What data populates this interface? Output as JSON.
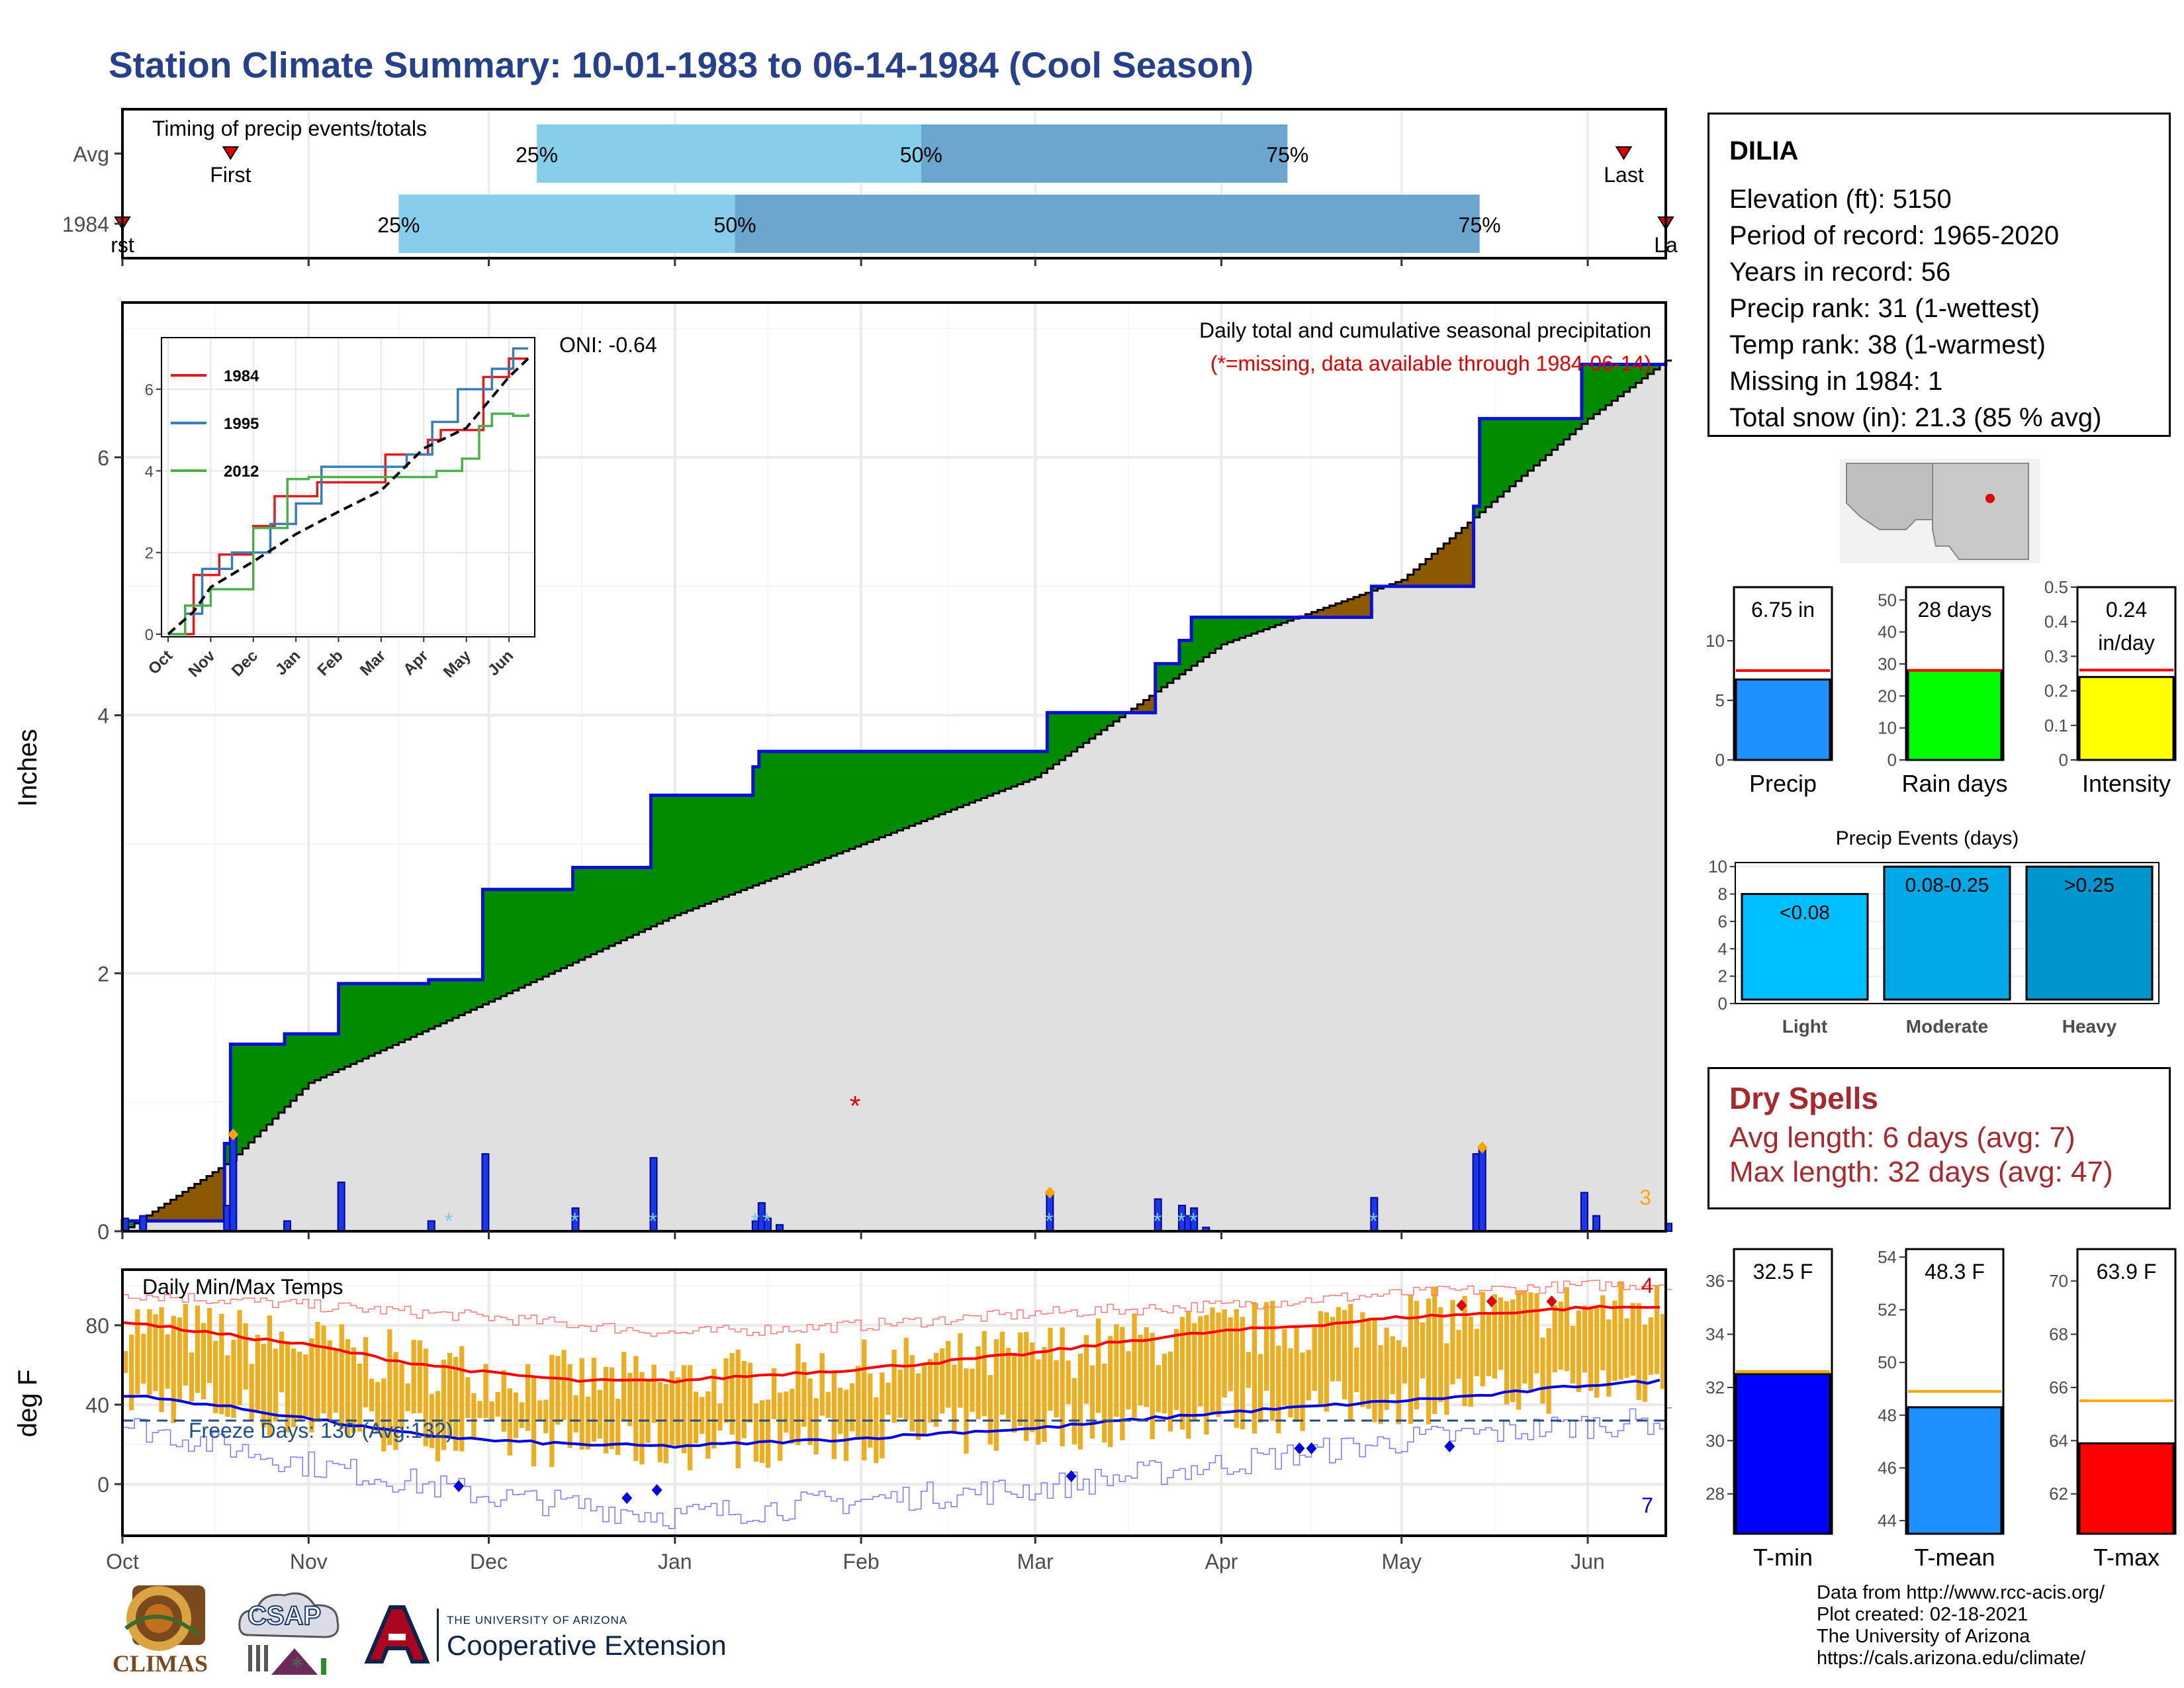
{
  "page": {
    "title": "Station Climate Summary: 10-01-1983 to 06-14-1984 (Cool Season)"
  },
  "station": {
    "name": "DILIA",
    "lines": [
      "Elevation (ft): 5150",
      "Period of record: 1965-2020",
      "Years in record: 56",
      "Precip rank: 31 (1-wettest)",
      "Temp rank: 38 (1-warmest)",
      "Missing in 1984: 1",
      "Total snow (in): 21.3 (85 % avg)"
    ]
  },
  "dry_spells": {
    "title": "Dry Spells",
    "avg_line": "Avg length: 6 days (avg: 7)",
    "max_line": "Max length: 32 days (avg: 47)"
  },
  "credits": [
    "Data from http://www.rcc-acis.org/",
    "Plot created: 02-18-2021",
    "The University of Arizona",
    "https://cals.arizona.edu/climate/"
  ],
  "logos": {
    "climas": "CLIMAS",
    "csap": "CSAP",
    "ua_small": "THE UNIVERSITY OF ARIZONA",
    "ua_big": "Cooperative Extension"
  },
  "colors": {
    "navy": "#26408b",
    "green_surplus": "#008b00",
    "brown_deficit": "#8b5a00",
    "cum_avg_fill": "#e0e0e0",
    "bar_blue": "#1a39e6",
    "temp_bar": "#ecad20",
    "max_line": "#ff0000",
    "min_line": "#0000e0",
    "light_blue": "#87ceeb",
    "mid_blue": "#6ba6cf"
  },
  "chart_data": [
    {
      "id": "timing",
      "type": "bar",
      "title": "Timing of precip events/totals",
      "categories": [
        "Avg",
        "1984"
      ],
      "x_domain": [
        "1983-10-01",
        "1984-06-14"
      ],
      "rows": [
        {
          "label": "Avg",
          "first": "1983-10-19",
          "p25": "1983-12-09",
          "p50": "1984-02-11",
          "p75": "1984-04-12",
          "last": "1984-06-07",
          "labels": {
            "first": "First",
            "p25": "25%",
            "p50": "50%",
            "p75": "75%",
            "last": "Last"
          }
        },
        {
          "label": "1984",
          "first": "1983-10-01",
          "p25": "1983-11-16",
          "p50": "1984-01-11",
          "p75": "1984-05-14",
          "last": "1984-06-14",
          "labels": {
            "first": "rst",
            "p25": "25%",
            "p50": "50%",
            "p75": "75%",
            "last": "La"
          }
        }
      ]
    },
    {
      "id": "precip",
      "type": "area",
      "title": "Daily total and cumulative seasonal precipitation",
      "subtitle": "(*=missing, data available through 1984-06-14)",
      "annotation": "ONI: -0.64",
      "ylabel": "Inches",
      "ylim": [
        0,
        7.2
      ],
      "yticks": [
        0,
        2,
        4,
        6
      ],
      "x_ticks": [
        "Oct",
        "Nov",
        "Dec",
        "Jan",
        "Feb",
        "Mar",
        "Apr",
        "May",
        "Jun"
      ],
      "x_domain": [
        "1983-10-01",
        "1984-06-14"
      ],
      "cumulative_1984": [
        [
          "1983-10-01",
          0.08
        ],
        [
          "1983-10-04",
          0.08
        ],
        [
          "1983-10-18",
          0.68
        ],
        [
          "1983-10-19",
          1.45
        ],
        [
          "1983-10-28",
          1.53
        ],
        [
          "1983-11-06",
          1.92
        ],
        [
          "1983-11-21",
          1.95
        ],
        [
          "1983-11-30",
          2.65
        ],
        [
          "1983-12-15",
          2.82
        ],
        [
          "1983-12-28",
          3.38
        ],
        [
          "1984-01-14",
          3.6
        ],
        [
          "1984-01-15",
          3.72
        ],
        [
          "1984-03-03",
          4.02
        ],
        [
          "1984-03-21",
          4.4
        ],
        [
          "1984-03-25",
          4.58
        ],
        [
          "1984-03-27",
          4.76
        ],
        [
          "1984-04-25",
          4.76
        ],
        [
          "1984-04-26",
          5.0
        ],
        [
          "1984-05-13",
          5.62
        ],
        [
          "1984-05-14",
          6.3
        ],
        [
          "1984-05-31",
          6.72
        ],
        [
          "1984-06-14",
          6.75
        ]
      ],
      "cumulative_avg": [
        [
          "1983-10-01",
          0.0
        ],
        [
          "1983-10-19",
          0.55
        ],
        [
          "1983-11-01",
          1.15
        ],
        [
          "1983-12-01",
          1.78
        ],
        [
          "1984-01-01",
          2.45
        ],
        [
          "1984-02-01",
          3.0
        ],
        [
          "1984-03-01",
          3.52
        ],
        [
          "1984-04-01",
          4.55
        ],
        [
          "1984-05-01",
          5.05
        ],
        [
          "1984-06-01",
          6.3
        ],
        [
          "1984-06-14",
          6.75
        ]
      ],
      "daily_1984": [
        [
          "1983-10-01",
          0.1
        ],
        [
          "1983-10-04",
          0.12
        ],
        [
          "1983-10-18",
          0.2
        ],
        [
          "1983-10-19",
          0.75
        ],
        [
          "1983-10-28",
          0.08
        ],
        [
          "1983-11-06",
          0.38
        ],
        [
          "1983-11-21",
          0.08
        ],
        [
          "1983-11-30",
          0.6
        ],
        [
          "1983-12-15",
          0.18
        ],
        [
          "1983-12-28",
          0.57
        ],
        [
          "1984-01-14",
          0.08
        ],
        [
          "1984-01-15",
          0.22
        ],
        [
          "1984-01-16",
          0.1
        ],
        [
          "1984-01-18",
          0.05
        ],
        [
          "1984-03-03",
          0.3
        ],
        [
          "1984-03-21",
          0.25
        ],
        [
          "1984-03-25",
          0.2
        ],
        [
          "1984-03-26",
          0.12
        ],
        [
          "1984-03-27",
          0.18
        ],
        [
          "1984-03-29",
          0.03
        ],
        [
          "1984-04-26",
          0.26
        ],
        [
          "1984-05-13",
          0.6
        ],
        [
          "1984-05-14",
          0.65
        ],
        [
          "1984-05-31",
          0.3
        ],
        [
          "1984-06-02",
          0.12
        ],
        [
          "1984-06-14",
          0.06
        ]
      ],
      "missing": [
        [
          "1984-01-31",
          1.0
        ]
      ],
      "annotations": {
        "corner_count": "3"
      },
      "inset": {
        "type": "line",
        "ylim": [
          0,
          7.2
        ],
        "yticks": [
          0,
          2,
          4,
          6
        ],
        "x_ticks": [
          "Oct",
          "Nov",
          "Dec",
          "Jan",
          "Feb",
          "Mar",
          "Apr",
          "May",
          "Jun"
        ],
        "series": [
          {
            "name": "1984",
            "color": "#e41a1c",
            "points": [
              [
                0,
                0.0
              ],
              [
                0.6,
                1.45
              ],
              [
                1.2,
                1.95
              ],
              [
                2.0,
                2.65
              ],
              [
                2.5,
                3.38
              ],
              [
                3.5,
                3.72
              ],
              [
                5.1,
                4.4
              ],
              [
                6.1,
                4.76
              ],
              [
                6.4,
                5.0
              ],
              [
                7.4,
                6.3
              ],
              [
                8.0,
                6.75
              ],
              [
                8.45,
                6.75
              ]
            ]
          },
          {
            "name": "1995",
            "color": "#377eb8",
            "points": [
              [
                0,
                0.0
              ],
              [
                0.4,
                0.5
              ],
              [
                0.8,
                1.6
              ],
              [
                1.5,
                2.0
              ],
              [
                2.4,
                2.7
              ],
              [
                3.0,
                3.2
              ],
              [
                3.6,
                4.1
              ],
              [
                5.6,
                4.4
              ],
              [
                6.2,
                5.2
              ],
              [
                6.8,
                6.0
              ],
              [
                7.6,
                6.5
              ],
              [
                8.1,
                7.0
              ],
              [
                8.45,
                7.0
              ]
            ]
          },
          {
            "name": "2012",
            "color": "#4daf4a",
            "points": [
              [
                0,
                0.0
              ],
              [
                0.4,
                0.7
              ],
              [
                1.0,
                1.1
              ],
              [
                2.0,
                2.6
              ],
              [
                2.8,
                3.8
              ],
              [
                3.3,
                3.85
              ],
              [
                6.3,
                4.0
              ],
              [
                6.9,
                4.3
              ],
              [
                7.3,
                5.1
              ],
              [
                7.6,
                5.4
              ],
              [
                8.1,
                5.35
              ],
              [
                8.45,
                5.4
              ]
            ]
          },
          {
            "name": "Avg",
            "color": "#000000",
            "points": [
              [
                0,
                0.0
              ],
              [
                0.6,
                0.55
              ],
              [
                1.0,
                1.15
              ],
              [
                2.0,
                1.78
              ],
              [
                3.0,
                2.45
              ],
              [
                4.0,
                3.0
              ],
              [
                5.0,
                3.52
              ],
              [
                6.0,
                4.55
              ],
              [
                7.0,
                5.05
              ],
              [
                8.0,
                6.3
              ],
              [
                8.45,
                6.75
              ]
            ]
          }
        ]
      }
    },
    {
      "id": "temps",
      "type": "line",
      "title": "Daily Min/Max Temps",
      "ylabel": "deg F",
      "ylim": [
        -26,
        108
      ],
      "yticks": [
        0,
        40,
        80
      ],
      "x_ticks": [
        "Oct",
        "Nov",
        "Dec",
        "Jan",
        "Feb",
        "Mar",
        "Apr",
        "May",
        "Jun"
      ],
      "x_domain": [
        "1983-10-01",
        "1984-06-14"
      ],
      "annotations": {
        "freeze_text": "Freeze Days: 130 (Avg:132)",
        "freeze_line_f": 32,
        "count_top": "4",
        "count_bottom": "7"
      },
      "avg_max": [
        [
          0,
          82
        ],
        [
          15,
          76
        ],
        [
          31,
          70
        ],
        [
          46,
          62
        ],
        [
          61,
          56
        ],
        [
          76,
          52
        ],
        [
          92,
          52
        ],
        [
          107,
          55
        ],
        [
          123,
          58
        ],
        [
          138,
          62
        ],
        [
          152,
          66
        ],
        [
          167,
          72
        ],
        [
          183,
          77
        ],
        [
          198,
          80
        ],
        [
          213,
          84
        ],
        [
          228,
          86
        ],
        [
          244,
          89
        ],
        [
          257,
          89
        ]
      ],
      "avg_min": [
        [
          0,
          45
        ],
        [
          15,
          40
        ],
        [
          31,
          33
        ],
        [
          46,
          26
        ],
        [
          61,
          22
        ],
        [
          76,
          20
        ],
        [
          92,
          19
        ],
        [
          107,
          21
        ],
        [
          123,
          23
        ],
        [
          138,
          26
        ],
        [
          152,
          28
        ],
        [
          167,
          32
        ],
        [
          183,
          36
        ],
        [
          198,
          39
        ],
        [
          213,
          42
        ],
        [
          228,
          45
        ],
        [
          244,
          50
        ],
        [
          257,
          52
        ]
      ],
      "record_max": [
        [
          0,
          96
        ],
        [
          31,
          90
        ],
        [
          61,
          84
        ],
        [
          92,
          76
        ],
        [
          123,
          80
        ],
        [
          152,
          86
        ],
        [
          183,
          90
        ],
        [
          213,
          96
        ],
        [
          244,
          100
        ],
        [
          257,
          101
        ]
      ],
      "record_min": [
        [
          0,
          30
        ],
        [
          31,
          10
        ],
        [
          61,
          -6
        ],
        [
          92,
          -16
        ],
        [
          123,
          -8
        ],
        [
          152,
          -2
        ],
        [
          183,
          10
        ],
        [
          213,
          22
        ],
        [
          244,
          30
        ],
        [
          257,
          32
        ]
      ],
      "daily_1984": "bars drawn from daily min to daily max",
      "record_markers_max": [
        [
          223,
          90
        ],
        [
          228,
          92
        ],
        [
          238,
          92
        ]
      ],
      "record_markers_min": [
        [
          56,
          -1
        ],
        [
          84,
          -7
        ],
        [
          89,
          -3
        ],
        [
          158,
          4
        ],
        [
          196,
          18
        ],
        [
          198,
          18
        ],
        [
          221,
          19
        ]
      ]
    },
    {
      "id": "gauge_precip",
      "type": "bar",
      "categories": [
        "Precip"
      ],
      "values": [
        6.75
      ],
      "avg": 7.5,
      "label": "6.75 in",
      "ylim": [
        0,
        14.5
      ],
      "yticks": [
        0,
        5,
        10
      ],
      "color": "#1e90ff"
    },
    {
      "id": "gauge_raindays",
      "type": "bar",
      "categories": [
        "Rain days"
      ],
      "values": [
        28
      ],
      "avg": 28,
      "label": "28 days",
      "ylim": [
        0,
        54
      ],
      "yticks": [
        0,
        10,
        20,
        30,
        40,
        50
      ],
      "color": "#00ff00"
    },
    {
      "id": "gauge_intensity",
      "type": "bar",
      "categories": [
        "Intensity"
      ],
      "values": [
        0.24
      ],
      "avg": 0.26,
      "label": [
        "0.24",
        "in/day"
      ],
      "ylim": [
        0,
        0.5
      ],
      "yticks": [
        0.0,
        0.1,
        0.2,
        0.3,
        0.4,
        0.5
      ],
      "color": "#ffff00"
    },
    {
      "id": "events",
      "type": "bar",
      "title": "Precip Events (days)",
      "categories": [
        "Light",
        "Moderate",
        "Heavy"
      ],
      "values": [
        8,
        10,
        10
      ],
      "bar_labels": [
        "<0.08",
        "0.08-0.25",
        ">0.25"
      ],
      "colors": [
        "#00bfff",
        "#00a9e6",
        "#0095cc"
      ],
      "ylim": [
        0,
        10.3
      ],
      "yticks": [
        0,
        2,
        4,
        6,
        8,
        10
      ]
    },
    {
      "id": "gauge_tmin",
      "type": "bar",
      "categories": [
        "T-min"
      ],
      "values": [
        32.5
      ],
      "avg": 32.6,
      "label": "32.5 F",
      "ylim": [
        26.5,
        37.2
      ],
      "yticks": [
        28,
        30,
        32,
        34,
        36
      ],
      "color": "#0000ff"
    },
    {
      "id": "gauge_tmean",
      "type": "bar",
      "categories": [
        "T-mean"
      ],
      "values": [
        48.3
      ],
      "avg": 48.9,
      "label": "48.3 F",
      "ylim": [
        43.5,
        54.3
      ],
      "yticks": [
        44,
        46,
        48,
        50,
        52,
        54
      ],
      "color": "#1e90ff"
    },
    {
      "id": "gauge_tmax",
      "type": "bar",
      "categories": [
        "T-max"
      ],
      "values": [
        63.9
      ],
      "avg": 65.5,
      "label": "63.9 F",
      "ylim": [
        60.5,
        71.2
      ],
      "yticks": [
        62,
        64,
        66,
        68,
        70
      ],
      "color": "#ff0000"
    }
  ]
}
